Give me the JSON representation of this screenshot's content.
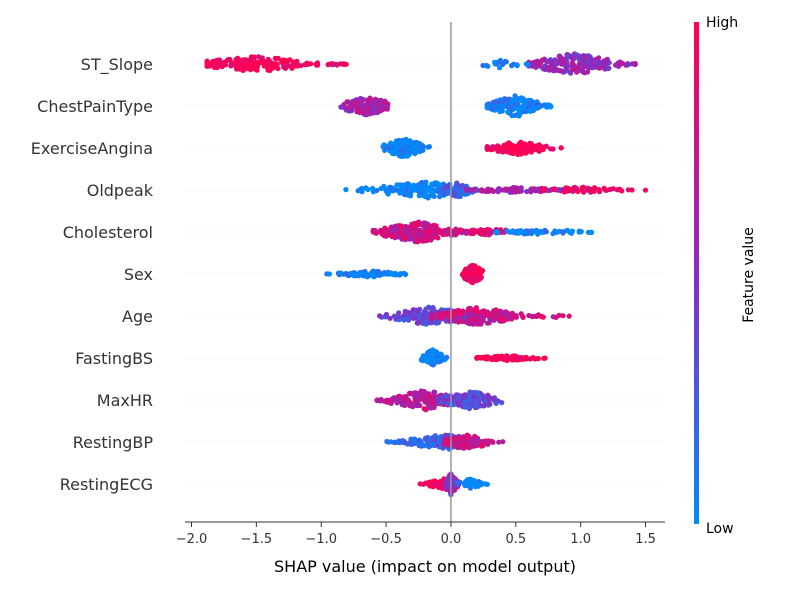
{
  "chart_data": {
    "type": "scatter",
    "subtype": "shap-beeswarm",
    "title": "",
    "xlabel": "SHAP value (impact on model output)",
    "xlim": [
      -2.05,
      1.65
    ],
    "xticks": [
      -2.0,
      -1.5,
      -1.0,
      -0.5,
      0.0,
      0.5,
      1.0,
      1.5
    ],
    "xtick_labels": [
      "−2.0",
      "−1.5",
      "−1.0",
      "−0.5",
      "0.0",
      "0.5",
      "1.0",
      "1.5"
    ],
    "grid": "dotted horizontal row lines",
    "colorbar": {
      "label": "Feature value",
      "high_label": "High",
      "low_label": "Low",
      "high_color": "#ff0052",
      "mid_color": "#8a2bc4",
      "low_color": "#008bfb"
    },
    "features": [
      {
        "name": "ST_Slope",
        "clusters": [
          {
            "center": -1.5,
            "spread": 0.28,
            "range": [
              -1.88,
              -0.78
            ],
            "value": 1.0,
            "n": 180,
            "height": 0.3
          },
          {
            "center": -0.88,
            "spread": 0.05,
            "range": [
              -0.95,
              -0.78
            ],
            "value": 0.9,
            "n": 8,
            "height": 0.05
          },
          {
            "center": 0.95,
            "spread": 0.22,
            "range": [
              0.6,
              1.42
            ],
            "value": 0.55,
            "n": 200,
            "height": 0.42
          },
          {
            "center": 0.38,
            "spread": 0.1,
            "range": [
              0.23,
              0.6
            ],
            "value": 0.0,
            "n": 20,
            "height": 0.18
          }
        ]
      },
      {
        "name": "ChestPainType",
        "clusters": [
          {
            "center": -0.65,
            "spread": 0.1,
            "range": [
              -0.97,
              -0.42
            ],
            "value": 0.6,
            "n": 130,
            "height": 0.36
          },
          {
            "center": 0.5,
            "spread": 0.12,
            "range": [
              0.28,
              0.77
            ],
            "value": 0.05,
            "n": 170,
            "height": 0.42
          }
        ]
      },
      {
        "name": "ExerciseAngina",
        "clusters": [
          {
            "center": -0.36,
            "spread": 0.08,
            "range": [
              -0.56,
              -0.15
            ],
            "value": 0.0,
            "n": 160,
            "height": 0.38
          },
          {
            "center": 0.52,
            "spread": 0.14,
            "range": [
              0.28,
              0.85
            ],
            "value": 1.0,
            "n": 120,
            "height": 0.26
          }
        ]
      },
      {
        "name": "Oldpeak",
        "clusters": [
          {
            "center": -0.2,
            "spread": 0.22,
            "range": [
              -1.05,
              0.12
            ],
            "value": 0.0,
            "n": 150,
            "height": 0.32
          },
          {
            "center": 0.05,
            "spread": 0.1,
            "range": [
              -0.1,
              0.2
            ],
            "value": 0.25,
            "n": 60,
            "height": 0.3
          },
          {
            "center": 0.5,
            "spread": 0.26,
            "range": [
              0.12,
              1.05
            ],
            "value": 0.6,
            "n": 80,
            "height": 0.1
          },
          {
            "center": 1.0,
            "spread": 0.18,
            "range": [
              0.7,
              1.5
            ],
            "value": 0.95,
            "n": 50,
            "height": 0.12
          }
        ]
      },
      {
        "name": "Cholesterol",
        "clusters": [
          {
            "center": -0.25,
            "spread": 0.17,
            "range": [
              -0.6,
              0.15
            ],
            "value": 0.75,
            "n": 230,
            "height": 0.4
          },
          {
            "center": 0.3,
            "spread": 0.16,
            "range": [
              0.0,
              0.6
            ],
            "value": 0.8,
            "n": 60,
            "height": 0.12
          },
          {
            "center": 0.7,
            "spread": 0.22,
            "range": [
              0.35,
              1.27
            ],
            "value": 0.05,
            "n": 60,
            "height": 0.1
          }
        ]
      },
      {
        "name": "Sex",
        "clusters": [
          {
            "center": -0.62,
            "spread": 0.14,
            "range": [
              -0.97,
              -0.35
            ],
            "value": 0.0,
            "n": 90,
            "height": 0.12
          },
          {
            "center": 0.17,
            "spread": 0.035,
            "range": [
              0.06,
              0.28
            ],
            "value": 1.0,
            "n": 120,
            "height": 0.36
          }
        ]
      },
      {
        "name": "Age",
        "clusters": [
          {
            "center": -0.15,
            "spread": 0.18,
            "range": [
              -0.55,
              0.25
            ],
            "value": 0.35,
            "n": 160,
            "height": 0.36
          },
          {
            "center": 0.2,
            "spread": 0.2,
            "range": [
              -0.15,
              0.7
            ],
            "value": 0.75,
            "n": 150,
            "height": 0.34
          },
          {
            "center": 0.75,
            "spread": 0.1,
            "range": [
              0.6,
              0.97
            ],
            "value": 0.85,
            "n": 12,
            "height": 0.08
          }
        ]
      },
      {
        "name": "FastingBS",
        "clusters": [
          {
            "center": -0.14,
            "spread": 0.04,
            "range": [
              -0.25,
              -0.03
            ],
            "value": 0.0,
            "n": 110,
            "height": 0.32
          },
          {
            "center": 0.45,
            "spread": 0.14,
            "range": [
              0.2,
              0.77
            ],
            "value": 1.0,
            "n": 90,
            "height": 0.1
          }
        ]
      },
      {
        "name": "MaxHR",
        "clusters": [
          {
            "center": -0.2,
            "spread": 0.17,
            "range": [
              -0.58,
              0.15
            ],
            "value": 0.7,
            "n": 170,
            "height": 0.38
          },
          {
            "center": 0.15,
            "spread": 0.14,
            "range": [
              -0.1,
              0.52
            ],
            "value": 0.35,
            "n": 140,
            "height": 0.34
          }
        ]
      },
      {
        "name": "RestingBP",
        "clusters": [
          {
            "center": -0.05,
            "spread": 0.2,
            "range": [
              -0.55,
              0.2
            ],
            "value": 0.25,
            "n": 150,
            "height": 0.3
          },
          {
            "center": 0.12,
            "spread": 0.12,
            "range": [
              -0.05,
              0.4
            ],
            "value": 0.75,
            "n": 120,
            "height": 0.3
          }
        ]
      },
      {
        "name": "RestingECG",
        "clusters": [
          {
            "center": -0.04,
            "spread": 0.09,
            "range": [
              -0.3,
              0.05
            ],
            "value": 0.95,
            "n": 90,
            "height": 0.22
          },
          {
            "center": 0.0,
            "spread": 0.03,
            "range": [
              -0.06,
              0.06
            ],
            "value": 0.55,
            "n": 70,
            "height": 0.42
          },
          {
            "center": 0.15,
            "spread": 0.06,
            "range": [
              0.05,
              0.28
            ],
            "value": 0.05,
            "n": 40,
            "height": 0.2
          }
        ]
      }
    ]
  }
}
